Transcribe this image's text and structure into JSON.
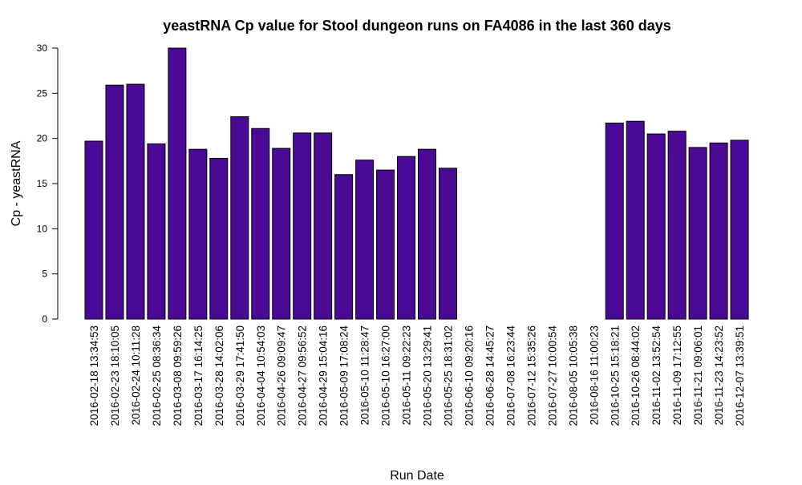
{
  "chart_data": {
    "type": "bar",
    "title": "yeastRNA Cp value for Stool dungeon runs on FA4086 in the last 360 days",
    "xlabel": "Run Date",
    "ylabel": "Cp - yeastRNA",
    "ylim": [
      0,
      30
    ],
    "yticks": [
      "0",
      "5",
      "10",
      "15",
      "20",
      "25",
      "30"
    ],
    "grid": false,
    "legend": "none",
    "bar_color": "#4a0a96",
    "categories": [
      "2016-02-18 13:34:53",
      "2016-02-23 18:10:05",
      "2016-02-24 10:11:28",
      "2016-02-25 08:36:34",
      "2016-03-08 09:59:26",
      "2016-03-17 16:14:25",
      "2016-03-28 14:02:06",
      "2016-03-29 17:41:50",
      "2016-04-04 10:54:03",
      "2016-04-26 09:09:47",
      "2016-04-27 09:56:52",
      "2016-04-29 15:04:16",
      "2016-05-09 17:08:24",
      "2016-05-10 11:28:47",
      "2016-05-10 16:27:00",
      "2016-05-11 09:22:23",
      "2016-05-20 13:29:41",
      "2016-05-25 18:31:02",
      "2016-06-10 09:20:16",
      "2016-06-28 14:45:27",
      "2016-07-08 16:23:44",
      "2016-07-12 15:35:26",
      "2016-07-27 10:00:54",
      "2016-08-05 10:05:38",
      "2016-08-16 11:00:23",
      "2016-10-25 15:18:21",
      "2016-10-26 08:44:02",
      "2016-11-02 13:52:54",
      "2016-11-09 17:12:55",
      "2016-11-21 09:06:01",
      "2016-11-23 14:23:52",
      "2016-12-07 13:39:51"
    ],
    "values": [
      19.7,
      25.9,
      26.0,
      19.4,
      30.0,
      18.8,
      17.8,
      22.4,
      21.1,
      18.9,
      20.6,
      20.6,
      16.0,
      17.6,
      16.5,
      18.0,
      18.8,
      16.7,
      null,
      null,
      null,
      null,
      null,
      null,
      null,
      21.7,
      21.9,
      20.5,
      20.8,
      19.0,
      19.5,
      19.8
    ]
  }
}
